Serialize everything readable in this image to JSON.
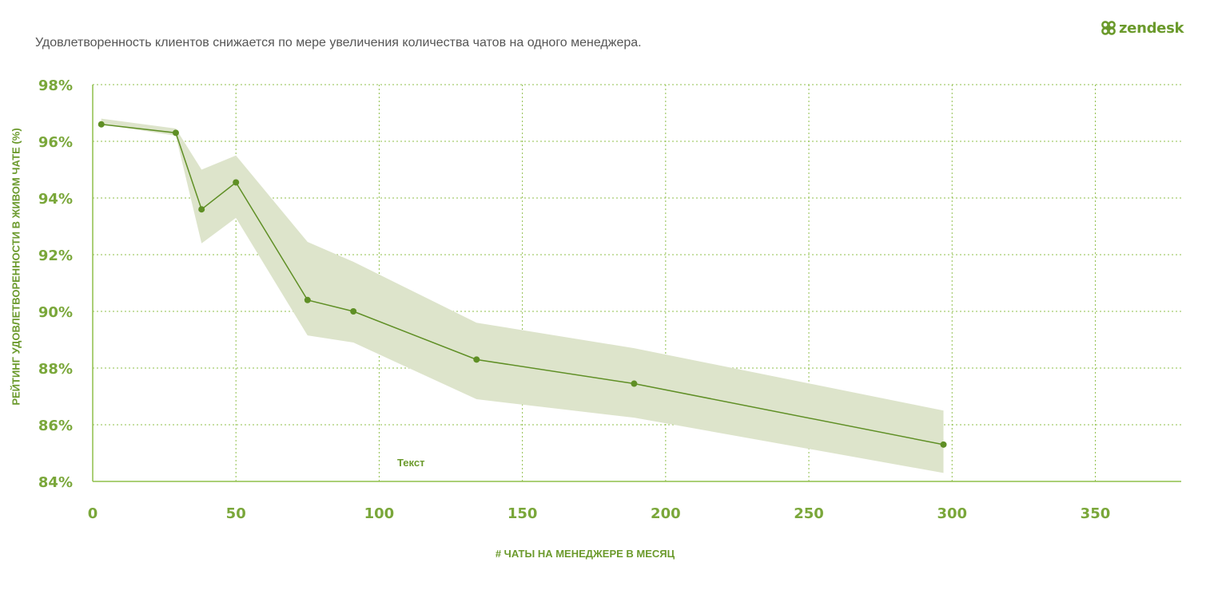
{
  "header": {
    "title": "Удовлетворенность клиентов снижается по мере увеличения количества чатов на одного менеджера.",
    "logo_text": "zendesk"
  },
  "colors": {
    "accent": "#6b9a2c",
    "line": "#5f8f25",
    "band": "#dde4cb",
    "grid": "#8fbf4a"
  },
  "chart_data": {
    "type": "line",
    "title": "Удовлетворенность клиентов снижается по мере увеличения количества чатов на одного менеджера.",
    "xlabel": "# ЧАТЫ НА МЕНЕДЖЕРЕ В МЕСЯЦ",
    "ylabel": "РЕЙТИНГ УДОВЛЕТВОРЕННОСТИ В ЖИВОМ ЧАТЕ (%)",
    "annotation": "Текст",
    "xlim": [
      0,
      380
    ],
    "ylim": [
      84,
      98
    ],
    "x_ticks": [
      0,
      50,
      100,
      150,
      200,
      250,
      300,
      350
    ],
    "y_ticks": [
      84,
      86,
      88,
      90,
      92,
      94,
      96,
      98
    ],
    "x_tick_labels": [
      "0",
      "50",
      "100",
      "150",
      "200",
      "250",
      "300",
      "350"
    ],
    "y_tick_labels": [
      "84%",
      "86%",
      "88%",
      "90%",
      "92%",
      "94%",
      "96%",
      "98%"
    ],
    "grid": true,
    "series": [
      {
        "x": [
          3,
          29,
          38,
          50,
          75,
          91,
          134,
          189,
          297
        ],
        "y": [
          96.6,
          96.3,
          93.6,
          94.55,
          90.4,
          90.0,
          88.3,
          87.45,
          85.3
        ],
        "lower": [
          96.6,
          96.2,
          92.4,
          93.3,
          89.15,
          88.9,
          86.9,
          86.25,
          84.3
        ],
        "upper": [
          96.8,
          96.45,
          95.0,
          95.5,
          92.45,
          91.75,
          89.6,
          88.7,
          86.5
        ]
      }
    ]
  }
}
